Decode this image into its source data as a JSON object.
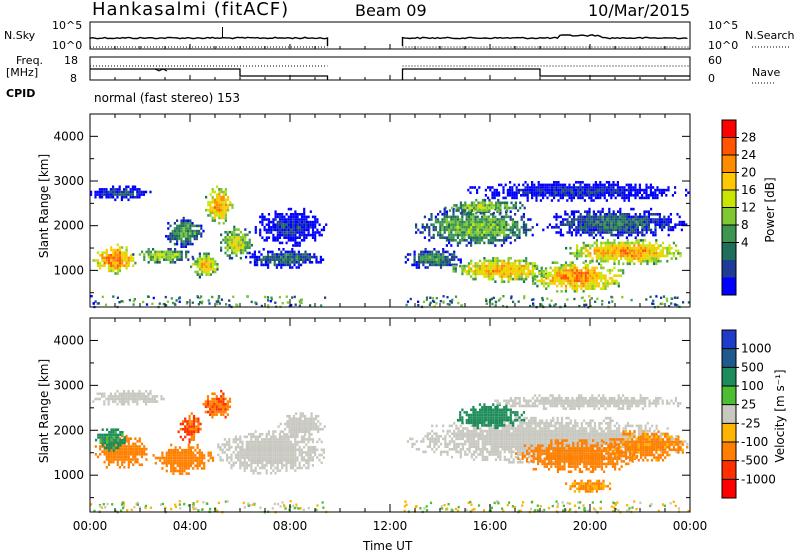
{
  "header": {
    "station": "Hankasalmi (fitACF)",
    "beam": "Beam 09",
    "date": "10/Mar/2015"
  },
  "panels": {
    "nsky_label": "N.Sky",
    "nsearch_label": "N.Search",
    "nsky_top": "10^5",
    "nsky_bottom": "10^0",
    "nsearch_top": "10^5",
    "nsearch_bottom": "10^0",
    "freq_label": "Freq.",
    "freq_unit": "[MHz]",
    "freq_top": "18",
    "freq_bottom": "8",
    "nave_label": "Nave",
    "nave_top": "60",
    "nave_bottom": "0",
    "cpid_label": "CPID",
    "cpid_value": "normal (fast stereo) 153"
  },
  "colorbars": {
    "power": {
      "label": "Power [dB]",
      "ticks": [
        "28",
        "24",
        "20",
        "16",
        "12",
        "8",
        "4"
      ],
      "colors": [
        "#ff0000",
        "#ff5500",
        "#ff8c00",
        "#ffc800",
        "#c8e600",
        "#7fc832",
        "#3c9650",
        "#1e6e5a",
        "#1e3c96",
        "#0000ff"
      ]
    },
    "velocity": {
      "label": "Velocity [m s⁻¹]",
      "ticks": [
        "1000",
        "500",
        "100",
        "25",
        "-25",
        "-100",
        "-500",
        "-1000"
      ],
      "colors": [
        "#1e3cc8",
        "#1e5a8c",
        "#1e8c5a",
        "#4cbe32",
        "#c8c8c0",
        "#ffb400",
        "#ff8000",
        "#ff3000",
        "#ff0000"
      ]
    }
  },
  "chart_data": [
    {
      "type": "heatmap",
      "name": "power",
      "ylabel": "Slant Range [km]",
      "yticks": [
        "4000",
        "3000",
        "2000",
        "1000"
      ],
      "ylim": [
        180,
        4500
      ],
      "xlim": [
        0,
        24
      ],
      "data_gap_hours": [
        9.5,
        12.5
      ],
      "blobs": [
        {
          "t0": 0.1,
          "t1": 1.9,
          "r0": 900,
          "r1": 1600,
          "power": 27
        },
        {
          "t0": 1.6,
          "t1": 4.2,
          "r0": 1100,
          "r1": 1500,
          "power": 18
        },
        {
          "t0": 4.0,
          "t1": 5.3,
          "r0": 800,
          "r1": 1400,
          "power": 22
        },
        {
          "t0": 4.6,
          "t1": 5.8,
          "r0": 2000,
          "r1": 2900,
          "power": 25
        },
        {
          "t0": 3.0,
          "t1": 4.6,
          "r0": 1500,
          "r1": 2200,
          "power": 14
        },
        {
          "t0": 5.2,
          "t1": 6.6,
          "r0": 1200,
          "r1": 2000,
          "power": 20
        },
        {
          "t0": 6.2,
          "t1": 9.5,
          "r0": 1000,
          "r1": 1500,
          "power": 10
        },
        {
          "t0": 6.5,
          "t1": 9.5,
          "r0": 1500,
          "r1": 2400,
          "power": 6
        },
        {
          "t0": 0.0,
          "t1": 2.5,
          "r0": 2500,
          "r1": 2900,
          "power": 8
        },
        {
          "t0": 12.5,
          "t1": 15.0,
          "r0": 1000,
          "r1": 1500,
          "power": 12
        },
        {
          "t0": 13.0,
          "t1": 18.0,
          "r0": 1500,
          "r1": 2400,
          "power": 16
        },
        {
          "t0": 14.5,
          "t1": 18.5,
          "r0": 700,
          "r1": 1300,
          "power": 24
        },
        {
          "t0": 17.5,
          "t1": 21.5,
          "r0": 500,
          "r1": 1200,
          "power": 26
        },
        {
          "t0": 19.0,
          "t1": 24.0,
          "r0": 1100,
          "r1": 1700,
          "power": 25
        },
        {
          "t0": 18.0,
          "t1": 24.0,
          "r0": 1700,
          "r1": 2400,
          "power": 10
        },
        {
          "t0": 14.0,
          "t1": 17.5,
          "r0": 2200,
          "r1": 2600,
          "power": 18
        },
        {
          "t0": 15.0,
          "t1": 24.0,
          "r0": 2500,
          "r1": 3000,
          "power": 6
        }
      ]
    },
    {
      "type": "heatmap",
      "name": "velocity",
      "ylabel": "Slant Range [km]",
      "yticks": [
        "4000",
        "3000",
        "2000",
        "1000"
      ],
      "xlabel": "Time UT",
      "xticks": [
        "00:00",
        "04:00",
        "08:00",
        "12:00",
        "16:00",
        "20:00",
        "00:00"
      ],
      "ylim": [
        180,
        4500
      ],
      "xlim": [
        0,
        24
      ],
      "data_gap_hours": [
        9.5,
        12.5
      ],
      "blobs": [
        {
          "t0": 0.0,
          "t1": 3.0,
          "r0": 2500,
          "r1": 2900,
          "vel": 0
        },
        {
          "t0": 0.1,
          "t1": 2.5,
          "r0": 1100,
          "r1": 1900,
          "vel": -300
        },
        {
          "t0": 0.2,
          "t1": 1.5,
          "r0": 1500,
          "r1": 2100,
          "vel": 150
        },
        {
          "t0": 2.5,
          "t1": 5.0,
          "r0": 1000,
          "r1": 1700,
          "vel": -200
        },
        {
          "t0": 3.5,
          "t1": 4.5,
          "r0": 1700,
          "r1": 2400,
          "vel": -600
        },
        {
          "t0": 4.5,
          "t1": 5.8,
          "r0": 2200,
          "r1": 2900,
          "vel": -400
        },
        {
          "t0": 5.0,
          "t1": 9.5,
          "r0": 1000,
          "r1": 2000,
          "vel": 0
        },
        {
          "t0": 7.5,
          "t1": 9.5,
          "r0": 1800,
          "r1": 2400,
          "vel": 5
        },
        {
          "t0": 12.5,
          "t1": 24.0,
          "r0": 1200,
          "r1": 2300,
          "vel": 0
        },
        {
          "t0": 14.5,
          "t1": 17.5,
          "r0": 2000,
          "r1": 2600,
          "vel": 200
        },
        {
          "t0": 17.0,
          "t1": 22.0,
          "r0": 1000,
          "r1": 1800,
          "vel": -250
        },
        {
          "t0": 20.5,
          "t1": 24.0,
          "r0": 1300,
          "r1": 2000,
          "vel": -150
        },
        {
          "t0": 16.0,
          "t1": 24.0,
          "r0": 2400,
          "r1": 2800,
          "vel": 0
        },
        {
          "t0": 19.0,
          "t1": 21.0,
          "r0": 600,
          "r1": 900,
          "vel": -120
        }
      ]
    }
  ]
}
